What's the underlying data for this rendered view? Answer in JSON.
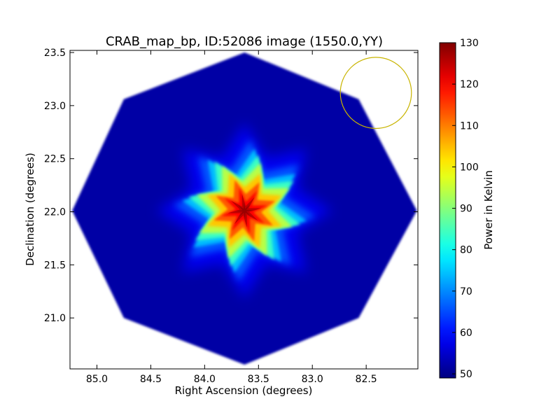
{
  "chart_data": {
    "type": "heatmap",
    "title": "CRAB_map_bp, ID:52086 image (1550.0,YY)",
    "xlabel": "Right Ascension (degrees)",
    "ylabel": "Declination (degrees)",
    "colorbar_label": "Power in Kelvin",
    "colormap": "jet",
    "xlim": [
      85.25,
      82.02
    ],
    "ylim": [
      20.52,
      23.52
    ],
    "x_reversed": true,
    "x_ticks": [
      "85.0",
      "84.5",
      "84.0",
      "83.5",
      "83.0",
      "82.5"
    ],
    "y_ticks": [
      "21.0",
      "21.5",
      "22.0",
      "22.5",
      "23.0",
      "23.5"
    ],
    "colorbar_range": [
      49,
      130
    ],
    "colorbar_ticks": [
      "50",
      "60",
      "70",
      "80",
      "90",
      "100",
      "110",
      "120",
      "130"
    ],
    "background_level": 52,
    "footprint": {
      "shape": "octagon",
      "center": [
        83.63,
        22.01
      ],
      "vertices": [
        [
          83.63,
          23.5
        ],
        [
          82.57,
          23.06
        ],
        [
          82.03,
          22.01
        ],
        [
          82.57,
          21.0
        ],
        [
          83.63,
          20.56
        ],
        [
          84.75,
          21.0
        ],
        [
          85.23,
          22.01
        ],
        [
          84.75,
          23.06
        ]
      ]
    },
    "source": {
      "center": [
        83.63,
        22.01
      ],
      "peak_level": 128
    },
    "reference_circle": {
      "center": [
        82.41,
        23.12
      ],
      "radius_deg": 0.33,
      "color": "#c8b400"
    },
    "grid": false
  }
}
